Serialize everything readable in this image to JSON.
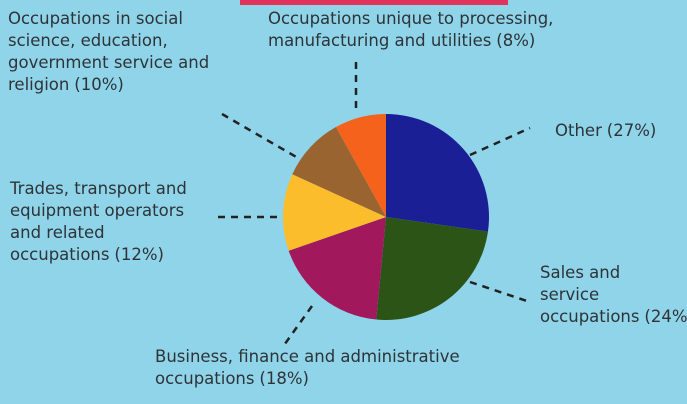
{
  "chart_data": {
    "type": "pie",
    "categories": [
      "Other",
      "Sales and service occupations",
      "Business, finance and administrative occupations",
      "Trades, transport and equipment operators and related occupations",
      "Occupations in social science, education, government service and religion",
      "Occupations unique to processing, manufacturing and utilities"
    ],
    "values": [
      27,
      24,
      18,
      12,
      10,
      8
    ],
    "value_labels": [
      "(27%)",
      "(24%)",
      "(18%)",
      "(12%)",
      "(10%)",
      "(8%)"
    ],
    "colors": [
      "#1b1f96",
      "#2b5416",
      "#a1185c",
      "#fbbd2c",
      "#9a6431",
      "#f5621c"
    ]
  }
}
